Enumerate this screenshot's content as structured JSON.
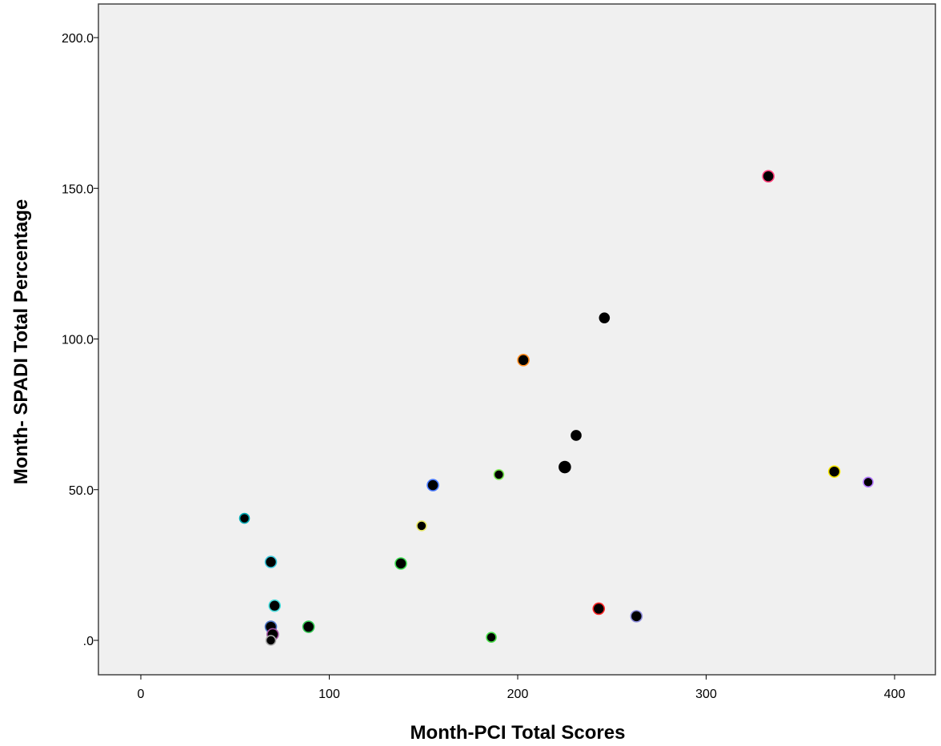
{
  "chart_data": {
    "type": "scatter",
    "title": "",
    "xlabel": "Month-PCI Total Scores",
    "ylabel": "Month- SPADI Total Percentage",
    "xlim": [
      -22,
      422
    ],
    "ylim": [
      -12,
      212
    ],
    "x_ticks": [
      0,
      100,
      200,
      300,
      400
    ],
    "x_tick_labels": [
      "0",
      "100",
      "200",
      "300",
      "400"
    ],
    "y_ticks": [
      0,
      50,
      100,
      150,
      200
    ],
    "y_tick_labels": [
      ".0",
      "50.0",
      "100.0",
      "150.0",
      "200.0"
    ],
    "grid": false,
    "plot_background": "#f0f0f0",
    "points": [
      {
        "x": 333,
        "y": 154,
        "edge": "#ff3c78",
        "big": true
      },
      {
        "x": 246,
        "y": 107,
        "edge": "#000000",
        "big": false
      },
      {
        "x": 203,
        "y": 93,
        "edge": "#ff8c1e",
        "big": true
      },
      {
        "x": 231,
        "y": 68,
        "edge": "#000000",
        "big": false
      },
      {
        "x": 225,
        "y": 57.5,
        "edge": "#000000",
        "big": true
      },
      {
        "x": 368,
        "y": 56,
        "edge": "#f5e600",
        "big": true
      },
      {
        "x": 190,
        "y": 55,
        "edge": "#78e650",
        "big": false
      },
      {
        "x": 386,
        "y": 52.5,
        "edge": "#b478ff",
        "big": false
      },
      {
        "x": 155,
        "y": 51.5,
        "edge": "#4678ff",
        "big": true
      },
      {
        "x": 55,
        "y": 40.5,
        "edge": "#00aab4",
        "big": false
      },
      {
        "x": 149,
        "y": 38,
        "edge": "#e6e664",
        "big": false
      },
      {
        "x": 69,
        "y": 26,
        "edge": "#3cc8dc",
        "big": true
      },
      {
        "x": 138,
        "y": 25.5,
        "edge": "#3cdc50",
        "big": true
      },
      {
        "x": 71,
        "y": 11.5,
        "edge": "#46dcdc",
        "big": true
      },
      {
        "x": 243,
        "y": 10.5,
        "edge": "#ff2828",
        "big": true
      },
      {
        "x": 263,
        "y": 8,
        "edge": "#8c8cdc",
        "big": true
      },
      {
        "x": 89,
        "y": 4.5,
        "edge": "#32c850",
        "big": true
      },
      {
        "x": 69,
        "y": 4.5,
        "edge": "#5078c8",
        "big": true
      },
      {
        "x": 70,
        "y": 2,
        "edge": "#a050a0",
        "big": true
      },
      {
        "x": 186,
        "y": 1,
        "edge": "#46dc46",
        "big": false
      },
      {
        "x": 69,
        "y": 0,
        "edge": "#aaaaaa",
        "big": false
      }
    ]
  }
}
